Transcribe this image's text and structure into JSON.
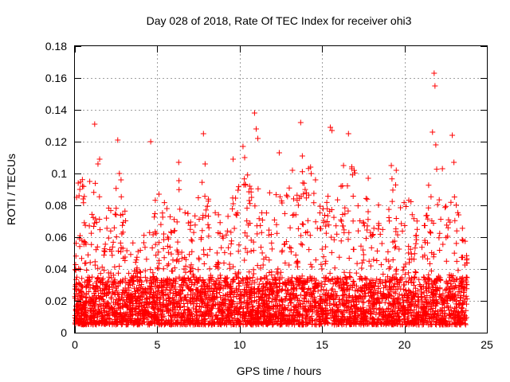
{
  "chart_data": {
    "type": "scatter",
    "title": "Day 028 of 2018, Rate Of TEC Index for receiver ohi3",
    "xlabel": "GPS time / hours",
    "ylabel": "ROTI / TECUs",
    "xlim": [
      0,
      25
    ],
    "ylim": [
      0,
      0.18
    ],
    "x_ticks": [
      0,
      5,
      10,
      15,
      20,
      25
    ],
    "x_tick_labels": [
      "0",
      "5",
      "10",
      "15",
      "20",
      "25"
    ],
    "y_ticks": [
      0,
      0.02,
      0.04,
      0.06,
      0.08,
      0.1,
      0.12,
      0.14,
      0.16,
      0.18
    ],
    "y_tick_labels": [
      "0",
      "0.02",
      "0.04",
      "0.06",
      "0.08",
      "0.1",
      "0.12",
      "0.14",
      "0.16",
      "0.18"
    ],
    "grid": true,
    "marker": "+",
    "color": "#ff0000",
    "series": [
      {
        "name": "ROTI",
        "note": "dense cloud of points 0.005-0.04 TECU/s from 0 to 24 h; listed here are the distinct high-value points",
        "x": [
          0.1,
          0.2,
          0.3,
          0.5,
          0.9,
          1.2,
          1.4,
          1.5,
          2.6,
          2.7,
          2.8,
          4.6,
          5.1,
          6.3,
          7.8,
          7.9,
          9.6,
          10.2,
          10.3,
          10.9,
          11.0,
          11.1,
          12.4,
          13.2,
          13.7,
          13.8,
          14.3,
          14.6,
          15.5,
          15.6,
          16.3,
          16.6,
          16.8,
          17.8,
          19.2,
          19.5,
          21.7,
          21.8,
          21.85,
          21.9,
          22.3,
          22.9,
          23.0
        ],
        "y": [
          0.085,
          0.094,
          0.09,
          0.084,
          0.095,
          0.131,
          0.106,
          0.109,
          0.121,
          0.1,
          0.096,
          0.12,
          0.087,
          0.107,
          0.125,
          0.106,
          0.109,
          0.117,
          0.11,
          0.138,
          0.128,
          0.122,
          0.113,
          0.102,
          0.132,
          0.111,
          0.104,
          0.096,
          0.129,
          0.127,
          0.105,
          0.125,
          0.103,
          0.097,
          0.105,
          0.102,
          0.126,
          0.163,
          0.155,
          0.118,
          0.103,
          0.124,
          0.107
        ]
      }
    ]
  }
}
